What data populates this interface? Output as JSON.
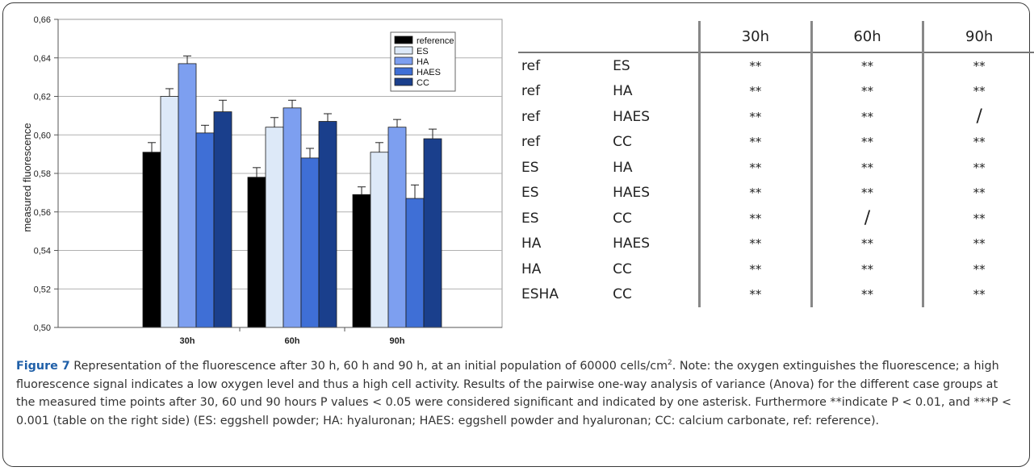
{
  "chart_data": {
    "type": "bar",
    "ylabel": "measured fluorescence",
    "categories": [
      "30h",
      "60h",
      "90h"
    ],
    "ylim": [
      0.5,
      0.66
    ],
    "yticks": [
      "0,50",
      "0,52",
      "0,54",
      "0,56",
      "0,58",
      "0,60",
      "0,62",
      "0,64",
      "0,66"
    ],
    "ytick_values": [
      0.5,
      0.52,
      0.54,
      0.56,
      0.58,
      0.6,
      0.62,
      0.64,
      0.66
    ],
    "grid": true,
    "legend_position": "top-right",
    "series": [
      {
        "name": "reference",
        "color": "#000000",
        "values": [
          0.591,
          0.578,
          0.569
        ],
        "errors": [
          0.005,
          0.005,
          0.004
        ]
      },
      {
        "name": "ES",
        "color": "#dde9f8",
        "values": [
          0.62,
          0.604,
          0.591
        ],
        "errors": [
          0.004,
          0.005,
          0.005
        ]
      },
      {
        "name": "HA",
        "color": "#7d9ff0",
        "values": [
          0.637,
          0.614,
          0.604
        ],
        "errors": [
          0.004,
          0.004,
          0.004
        ]
      },
      {
        "name": "HAES",
        "color": "#3f6fd6",
        "values": [
          0.601,
          0.588,
          0.567
        ],
        "errors": [
          0.004,
          0.005,
          0.007
        ]
      },
      {
        "name": "CC",
        "color": "#1a3f8c",
        "values": [
          0.612,
          0.607,
          0.598
        ],
        "errors": [
          0.006,
          0.004,
          0.005
        ]
      }
    ]
  },
  "table": {
    "headers": [
      "30h",
      "60h",
      "90h"
    ],
    "rows": [
      {
        "a": "ref",
        "b": "ES",
        "v": [
          "**",
          "**",
          "**"
        ]
      },
      {
        "a": "ref",
        "b": "HA",
        "v": [
          "**",
          "**",
          "**"
        ]
      },
      {
        "a": "ref",
        "b": "HAES",
        "v": [
          "**",
          "**",
          "/"
        ]
      },
      {
        "a": "ref",
        "b": "CC",
        "v": [
          "**",
          "**",
          "**"
        ]
      },
      {
        "a": "ES",
        "b": "HA",
        "v": [
          "**",
          "**",
          "**"
        ]
      },
      {
        "a": "ES",
        "b": "HAES",
        "v": [
          "**",
          "**",
          "**"
        ]
      },
      {
        "a": "ES",
        "b": "CC",
        "v": [
          "**",
          "/",
          "**"
        ]
      },
      {
        "a": "HA",
        "b": "HAES",
        "v": [
          "**",
          "**",
          "**"
        ]
      },
      {
        "a": "HA",
        "b": "CC",
        "v": [
          "**",
          "**",
          "**"
        ]
      },
      {
        "a": "ESHA",
        "b": "CC",
        "v": [
          "**",
          "**",
          "**"
        ]
      }
    ]
  },
  "caption": {
    "label": "Figure 7",
    "text_before_sup": " Representation of the fluorescence after 30 h, 60 h and 90 h, at an initial population of 60000 cells/cm",
    "sup": "2",
    "text_after_sup": ". Note: the oxygen extinguishes the fluorescence; a high fluorescence signal indicates a low oxygen level and thus a high cell activity. Results of the pairwise one-way analysis of variance (Anova) for the different case groups at the measured time points after 30, 60 und 90 hours P values < 0.05 were considered significant and indicated by one asterisk. Furthermore **indicate P < 0.01, and ***P < 0.001 (table on the right side) (ES: eggshell powder; HA: hyaluronan; HAES: eggshell powder and hyaluronan; CC: calcium carbonate, ref: reference)."
  }
}
